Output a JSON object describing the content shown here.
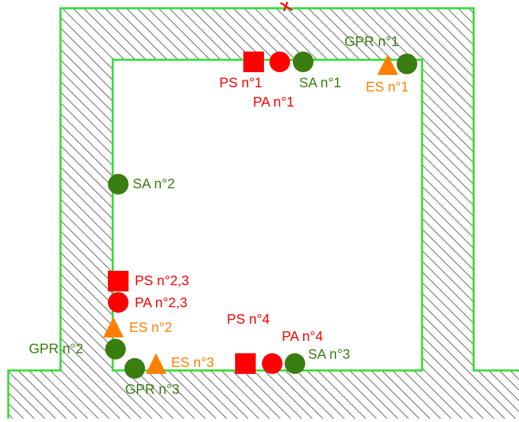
{
  "colors": {
    "red": "#ff0000",
    "orange": "#ff8000",
    "green": "#3a7d10",
    "outline": "#33dd33",
    "hatch": "#666666"
  },
  "labels": {
    "ps1": "PS n°1",
    "pa1": "PA n°1",
    "sa1": "SA n°1",
    "gpr1": "GPR n°1",
    "es1": "ES n°1",
    "sa2": "SA n°2",
    "ps23": "PS n°2,3",
    "pa23": "PA n°2,3",
    "es2": "ES n°2",
    "gpr2": "GPR n°2",
    "gpr3": "GPR n°3",
    "es3": "ES n°3",
    "ps4": "PS n°4",
    "pa4": "PA n°4",
    "sa3": "SA n°3"
  },
  "markers": [
    {
      "id": "ps1-marker",
      "shape": "square",
      "color": "red",
      "label": "ps1"
    },
    {
      "id": "pa1-marker",
      "shape": "circle",
      "color": "red",
      "label": "pa1"
    },
    {
      "id": "sa1-marker",
      "shape": "circle",
      "color": "green",
      "label": "sa1"
    },
    {
      "id": "es1-marker",
      "shape": "triangle",
      "color": "orange",
      "label": "es1"
    },
    {
      "id": "gpr1-marker",
      "shape": "circle",
      "color": "green",
      "label": "gpr1"
    },
    {
      "id": "sa2-marker",
      "shape": "circle",
      "color": "green",
      "label": "sa2"
    },
    {
      "id": "ps23-marker",
      "shape": "square",
      "color": "red",
      "label": "ps23"
    },
    {
      "id": "pa23-marker",
      "shape": "circle",
      "color": "red",
      "label": "pa23"
    },
    {
      "id": "es2-marker",
      "shape": "triangle",
      "color": "orange",
      "label": "es2"
    },
    {
      "id": "gpr2-marker",
      "shape": "circle",
      "color": "green",
      "label": "gpr2"
    },
    {
      "id": "gpr3-marker",
      "shape": "circle",
      "color": "green",
      "label": "gpr3"
    },
    {
      "id": "es3-marker",
      "shape": "triangle",
      "color": "orange",
      "label": "es3"
    },
    {
      "id": "ps4-marker",
      "shape": "square",
      "color": "red",
      "label": "ps4"
    },
    {
      "id": "pa4-marker",
      "shape": "circle",
      "color": "red",
      "label": "pa4"
    },
    {
      "id": "sa3-marker",
      "shape": "circle",
      "color": "green",
      "label": "sa3"
    }
  ]
}
